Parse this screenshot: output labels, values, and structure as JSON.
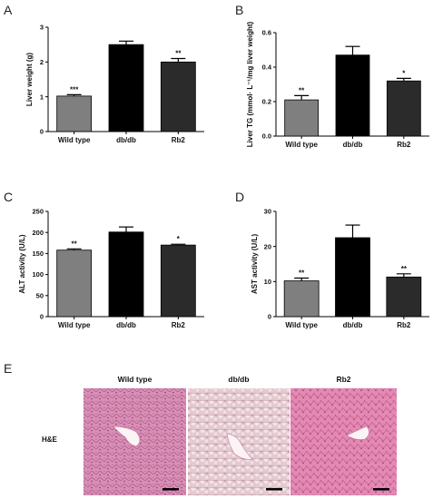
{
  "chart_data": [
    {
      "panel": "A",
      "type": "bar",
      "categories": [
        "Wild type",
        "db/db",
        "Rb2"
      ],
      "values": [
        1.02,
        2.5,
        2.0
      ],
      "errors": [
        0.04,
        0.1,
        0.1
      ],
      "significance": [
        "***",
        "",
        "**"
      ],
      "ylabel": "Liver weight (g)",
      "ylim": [
        0,
        3
      ],
      "yticks": [
        "0",
        "1",
        "2",
        "3"
      ],
      "bar_colors": [
        "#7f7f7f",
        "#000000",
        "#2b2b2b"
      ]
    },
    {
      "panel": "B",
      "type": "bar",
      "categories": [
        "Wild type",
        "db/db",
        "Rb2"
      ],
      "values": [
        0.21,
        0.47,
        0.32
      ],
      "errors": [
        0.025,
        0.05,
        0.015
      ],
      "significance": [
        "**",
        "",
        "*"
      ],
      "ylabel": "Liver TG (mmol· L⁻¹/mg liver weight)",
      "ylim": [
        0,
        0.6
      ],
      "yticks": [
        "0.0",
        "0.2",
        "0.4",
        "0.6"
      ],
      "bar_colors": [
        "#7f7f7f",
        "#000000",
        "#2b2b2b"
      ]
    },
    {
      "panel": "C",
      "type": "bar",
      "categories": [
        "Wild type",
        "db/db",
        "Rb2"
      ],
      "values": [
        158,
        201,
        170
      ],
      "errors": [
        3,
        12,
        2
      ],
      "significance": [
        "**",
        "",
        "*"
      ],
      "ylabel": "ALT activity (U/L)",
      "ylim": [
        0,
        250
      ],
      "yticks": [
        "0",
        "50",
        "100",
        "150",
        "200",
        "250"
      ],
      "bar_colors": [
        "#7f7f7f",
        "#000000",
        "#2b2b2b"
      ]
    },
    {
      "panel": "D",
      "type": "bar",
      "categories": [
        "Wild type",
        "db/db",
        "Rb2"
      ],
      "values": [
        10.2,
        22.5,
        11.3
      ],
      "errors": [
        0.8,
        3.6,
        0.9
      ],
      "significance": [
        "**",
        "",
        "**"
      ],
      "ylabel": "AST activity (U/L)",
      "ylim": [
        0,
        30
      ],
      "yticks": [
        "0",
        "10",
        "20",
        "30"
      ],
      "bar_colors": [
        "#7f7f7f",
        "#000000",
        "#2b2b2b"
      ]
    }
  ],
  "histology": {
    "panel": "E",
    "row_label": "H&E",
    "columns": [
      "Wild type",
      "db/db",
      "Rb2"
    ],
    "tissue_colors": [
      "#d98fb5",
      "#e4c9cf",
      "#e389b2"
    ]
  }
}
